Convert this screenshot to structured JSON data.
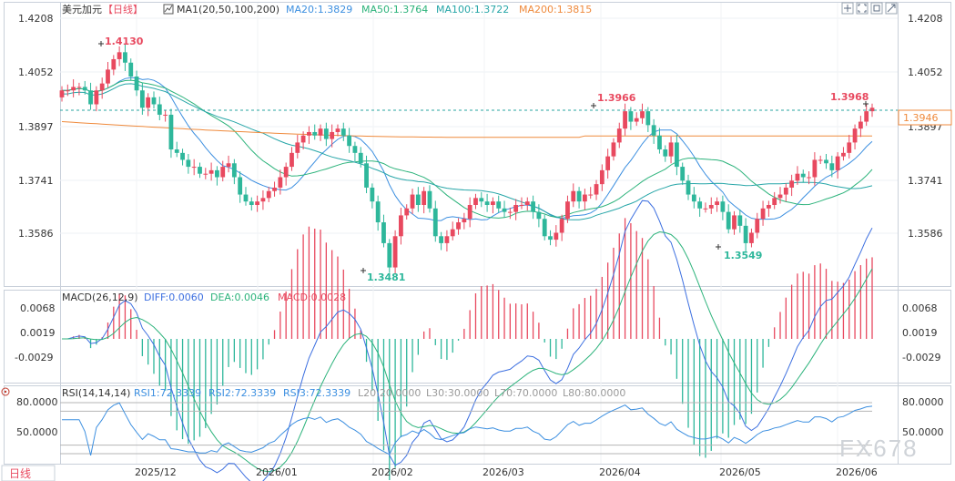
{
  "header": {
    "symbol": "美元加元",
    "period": "【日线】",
    "ma_label": "MA1(20,50,100,200)",
    "ma20": "MA20:1.3829",
    "ma50": "MA50:1.3764",
    "ma100": "MA100:1.3722",
    "ma200": "MA200:1.3815"
  },
  "colors": {
    "up": "#e8495f",
    "down": "#2eb79b",
    "ma20": "#3c8fe0",
    "ma50": "#2cb37b",
    "ma100": "#27a6a8",
    "ma200": "#ef8a3c",
    "diff": "#3c6fe0",
    "dea": "#2cb37b",
    "rsi": "#3c8fe0"
  },
  "main_axis": {
    "ticks": [
      "1.4208",
      "1.4052",
      "1.3897",
      "1.3741",
      "1.3586"
    ],
    "current_price": "1.3946"
  },
  "annotations": {
    "high": "1.4130",
    "low": "1.3481",
    "peak2": "1.3966",
    "low2": "1.3549",
    "peak3": "1.3968"
  },
  "macd_panel": {
    "title": "MACD(26,12,9)",
    "diff": "DIFF:0.0060",
    "dea": "DEA:0.0046",
    "macd": "MACD:0.0028",
    "ticks": [
      "0.0068",
      "0.0019",
      "-0.0029"
    ]
  },
  "rsi_panel": {
    "title": "RSI(14,14,14)",
    "rsi1": "RSI1:72.3339",
    "rsi2": "RSI2:72.3339",
    "rsi3": "RSI3:72.3339",
    "l20": "L20:20.0000",
    "l30": "L30:30.0000",
    "l70": "L70:70.0000",
    "l80": "L80:80.0000",
    "ticks": [
      "80.0000",
      "50.0000"
    ]
  },
  "x_axis": {
    "labels": [
      "2025/12",
      "2026/01",
      "2026/02",
      "2026/03",
      "2026/04",
      "2026/05",
      "2026/06"
    ]
  },
  "footer": {
    "period_button": "日线"
  },
  "watermark": "FX678",
  "chart_data": {
    "type": "candlestick",
    "title": "美元加元 日线",
    "ylim": [
      1.344,
      1.4208
    ],
    "close_series": [
      1.4,
      1.4,
      1.401,
      1.401,
      1.4,
      1.396,
      1.4,
      1.402,
      1.406,
      1.409,
      1.411,
      1.408,
      1.404,
      1.4,
      1.395,
      1.398,
      1.396,
      1.393,
      1.393,
      1.383,
      1.382,
      1.38,
      1.378,
      1.378,
      1.376,
      1.376,
      1.377,
      1.375,
      1.378,
      1.379,
      1.375,
      1.37,
      1.368,
      1.367,
      1.368,
      1.369,
      1.371,
      1.372,
      1.375,
      1.378,
      1.382,
      1.385,
      1.387,
      1.388,
      1.387,
      1.389,
      1.386,
      1.388,
      1.389,
      1.387,
      1.384,
      1.382,
      1.379,
      1.372,
      1.368,
      1.362,
      1.356,
      1.349,
      1.358,
      1.364,
      1.366,
      1.37,
      1.367,
      1.371,
      1.366,
      1.358,
      1.356,
      1.358,
      1.36,
      1.362,
      1.363,
      1.367,
      1.369,
      1.368,
      1.367,
      1.368,
      1.366,
      1.365,
      1.365,
      1.367,
      1.367,
      1.368,
      1.365,
      1.363,
      1.358,
      1.357,
      1.359,
      1.363,
      1.368,
      1.371,
      1.368,
      1.37,
      1.37,
      1.373,
      1.377,
      1.381,
      1.385,
      1.389,
      1.394,
      1.391,
      1.392,
      1.394,
      1.39,
      1.387,
      1.383,
      1.381,
      1.385,
      1.378,
      1.374,
      1.37,
      1.368,
      1.366,
      1.366,
      1.367,
      1.368,
      1.365,
      1.36,
      1.364,
      1.361,
      1.356,
      1.359,
      1.363,
      1.366,
      1.367,
      1.369,
      1.37,
      1.372,
      1.374,
      1.376,
      1.375,
      1.375,
      1.38,
      1.38,
      1.379,
      1.377,
      1.381,
      1.382,
      1.385,
      1.389,
      1.391,
      1.394,
      1.395
    ]
  }
}
